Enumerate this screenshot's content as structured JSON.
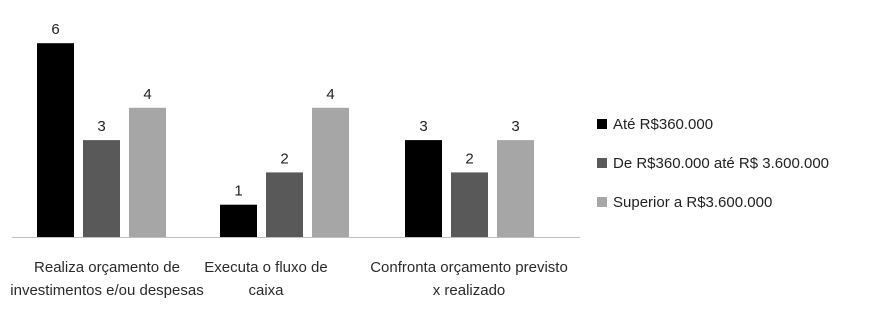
{
  "chart_data": {
    "type": "bar",
    "categories": [
      "Realiza orçamento de investimentos e/ou despesas",
      "Executa o fluxo de caixa",
      "Confronta orçamento previsto x realizado"
    ],
    "series": [
      {
        "name": "Até R$360.000",
        "color": "#000000",
        "values": [
          6,
          1,
          3
        ]
      },
      {
        "name": "De R$360.000 até R$ 3.600.000",
        "color": "#595959",
        "values": [
          3,
          2,
          2
        ]
      },
      {
        "name": "Superior a R$3.600.000",
        "color": "#a6a6a6",
        "values": [
          4,
          4,
          3
        ]
      }
    ],
    "data_labels": true,
    "legend_position": "right",
    "gridlines": false,
    "ylim": [
      0,
      6
    ]
  }
}
